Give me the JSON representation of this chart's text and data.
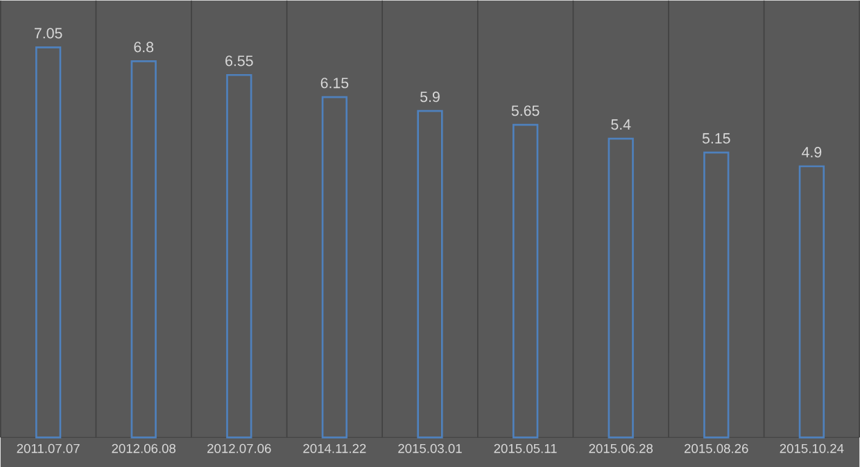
{
  "chart_data": {
    "type": "bar",
    "categories": [
      "2011.07.07",
      "2012.06.08",
      "2012.07.06",
      "2014.11.22",
      "2015.03.01",
      "2015.05.11",
      "2015.06.28",
      "2015.08.26",
      "2015.10.24"
    ],
    "values": [
      7.05,
      6.8,
      6.55,
      6.15,
      5.9,
      5.65,
      5.4,
      5.15,
      4.9
    ],
    "color": "#4f81bd",
    "data_labels": true,
    "grid": "x",
    "tick_labels": "x"
  }
}
